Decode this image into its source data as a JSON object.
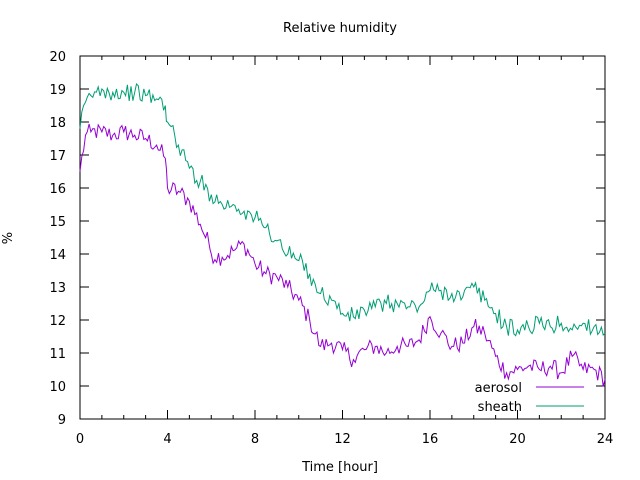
{
  "chart_data": {
    "type": "line",
    "title": "Relative humidity",
    "xlabel": "Time [hour]",
    "ylabel": "%",
    "xlim": [
      0,
      24
    ],
    "ylim": [
      9,
      20
    ],
    "xticks": [
      0,
      4,
      8,
      12,
      16,
      20,
      24
    ],
    "yticks": [
      9,
      10,
      11,
      12,
      13,
      14,
      15,
      16,
      17,
      18,
      19,
      20
    ],
    "xtick_labels": [
      "0",
      "4",
      "8",
      "12",
      "16",
      "20",
      "24"
    ],
    "ytick_labels": [
      "9",
      "10",
      "11",
      "12",
      "13",
      "14",
      "15",
      "16",
      "17",
      "18",
      "19",
      "20"
    ],
    "grid": false,
    "legend_position": "bottom-right",
    "series": [
      {
        "name": "aerosol",
        "color": "#9400d3",
        "x": [
          0,
          0.25,
          0.5,
          1,
          1.5,
          2,
          2.5,
          3,
          3.5,
          3.9,
          4.0,
          4.5,
          5,
          5.5,
          5.9,
          6,
          6.5,
          7,
          7.5,
          8,
          8.5,
          9,
          9.5,
          10,
          10.5,
          11,
          11.5,
          12,
          12.5,
          13,
          13.5,
          14,
          14.5,
          15,
          15.5,
          16,
          16.5,
          17,
          17.5,
          18,
          18.5,
          19,
          19.5,
          20,
          20.5,
          21,
          21.5,
          22,
          22.5,
          23,
          23.5,
          24
        ],
        "y": [
          16.5,
          17.6,
          17.7,
          17.7,
          17.6,
          17.7,
          17.6,
          17.5,
          17.3,
          16.9,
          16.0,
          15.9,
          15.6,
          14.9,
          14.3,
          14.0,
          13.9,
          14.1,
          14.3,
          13.7,
          13.4,
          13.3,
          13.0,
          12.6,
          12.0,
          11.2,
          11.3,
          11.1,
          10.8,
          11.1,
          11.2,
          11.0,
          11.2,
          11.2,
          11.4,
          12.1,
          11.6,
          11.2,
          11.3,
          11.8,
          11.6,
          10.9,
          10.4,
          10.5,
          10.6,
          10.5,
          10.6,
          10.4,
          10.9,
          10.5,
          10.5,
          10.2
        ]
      },
      {
        "name": "sheath",
        "color": "#009e73",
        "x": [
          0,
          0.25,
          0.5,
          1,
          1.5,
          2,
          2.5,
          3,
          3.5,
          3.9,
          4.0,
          4.5,
          5,
          5.5,
          6,
          6.5,
          7,
          7.5,
          8,
          8.5,
          9,
          9.5,
          10,
          10.5,
          11,
          11.5,
          12,
          12.5,
          13,
          13.5,
          14,
          14.5,
          15,
          15.5,
          16,
          16.5,
          17,
          17.5,
          18,
          18.5,
          19,
          19.5,
          20,
          20.5,
          21,
          21.5,
          22,
          22.5,
          23,
          23.5,
          24
        ],
        "y": [
          17.8,
          18.6,
          18.8,
          19.0,
          18.9,
          18.9,
          18.9,
          18.8,
          18.7,
          18.5,
          18.0,
          17.3,
          16.6,
          16.2,
          15.8,
          15.5,
          15.5,
          15.3,
          15.1,
          14.8,
          14.4,
          14.0,
          13.8,
          13.4,
          12.8,
          12.6,
          12.2,
          12.1,
          12.3,
          12.4,
          12.5,
          12.5,
          12.4,
          12.4,
          12.9,
          12.9,
          12.8,
          12.7,
          13.0,
          12.6,
          12.2,
          11.8,
          11.7,
          11.8,
          11.9,
          11.8,
          11.9,
          11.7,
          11.9,
          11.8,
          11.6
        ]
      }
    ]
  }
}
